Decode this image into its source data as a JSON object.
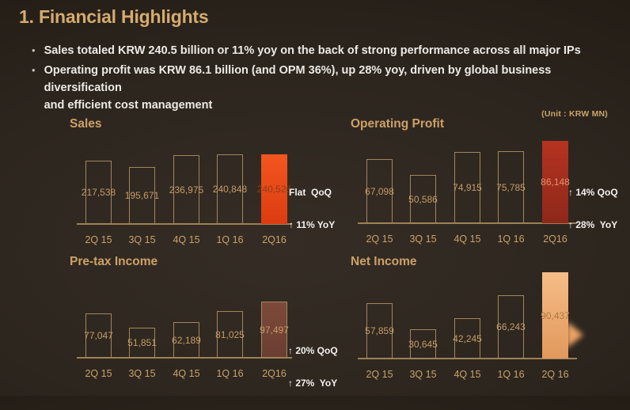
{
  "slide": {
    "title": "1. Financial Highlights",
    "bullets": [
      {
        "lines": [
          "Sales totaled KRW 240.5 billion or 11% yoy on the back of strong performance across all major IPs"
        ]
      },
      {
        "lines": [
          "Operating profit was KRW 86.1 billion (and OPM 36%), up 28% yoy, driven by global business diversification",
          "and efficient cost management"
        ]
      }
    ],
    "unit_label": "(Unit : KRW MN)"
  },
  "colors": {
    "accent_gold": "#d6ab6e",
    "chart_title": "#cda167",
    "bar_outline": "#a1855c",
    "axis_line": "#9c8052",
    "value_label": "#c49c66",
    "body_text": "#eceae6",
    "sales_highlight": "#e8491f",
    "op_highlight": "#b13220",
    "pretax_highlight": "#774638",
    "net_highlight": "#eda96d"
  },
  "chart_data": [
    {
      "type": "bar",
      "title": "Sales",
      "categories": [
        "2Q 15",
        "3Q 15",
        "4Q 15",
        "1Q 16",
        "2Q16"
      ],
      "values": [
        217538,
        195671,
        236975,
        240848,
        240526
      ],
      "ylim": [
        0,
        260000
      ],
      "grid": false,
      "highlight_index": 4,
      "highlight_colors": [
        "#f3561f",
        "#dc3c10"
      ],
      "highlight_value_color": "#8e3c16",
      "annotations": [
        "Flat  QoQ",
        "↑ 11% YoY"
      ]
    },
    {
      "type": "bar",
      "title": "Operating Profit",
      "categories": [
        "2Q 15",
        "3Q 15",
        "4Q 15",
        "1Q 16",
        "2Q16"
      ],
      "values": [
        67098,
        50586,
        74915,
        75785,
        86148
      ],
      "ylim": [
        0,
        95000
      ],
      "grid": false,
      "highlight_index": 4,
      "highlight_colors": [
        "#b53321",
        "#8e281a"
      ],
      "highlight_value_color": "#e0926a",
      "annotations": [
        "↑ 14% QoQ",
        "↑ 28%  YoY"
      ]
    },
    {
      "type": "bar",
      "title": "Pre-tax Income",
      "categories": [
        "2Q 15",
        "3Q 15",
        "4Q 15",
        "1Q 16",
        "2Q16"
      ],
      "values": [
        77047,
        51851,
        62189,
        81025,
        97497
      ],
      "ylim": [
        0,
        110000
      ],
      "grid": false,
      "highlight_index": 4,
      "highlight_colors": [
        "#7c4a3a",
        "#6a3e32"
      ],
      "highlight_border": "#a1855c",
      "highlight_value_color": "#c89c66",
      "annotations": [
        "↑ 20% QoQ",
        "↑ 27%  YoY"
      ]
    },
    {
      "type": "bar",
      "title": "Net Income",
      "categories": [
        "2Q 15",
        "3Q 15",
        "4Q 15",
        "1Q 16",
        "2Q 16"
      ],
      "values": [
        57859,
        30645,
        42245,
        66243,
        90437
      ],
      "ylim": [
        0,
        100000
      ],
      "grid": false,
      "highlight_index": 4,
      "highlight_colors": [
        "#f6bd87",
        "#e1985c"
      ],
      "highlight_value_color": "#aa7a42",
      "annotations": [],
      "arrow": true
    }
  ]
}
